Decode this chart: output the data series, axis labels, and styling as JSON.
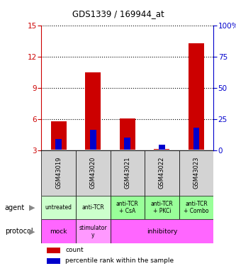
{
  "title": "GDS1339 / 169944_at",
  "samples": [
    "GSM43019",
    "GSM43020",
    "GSM43021",
    "GSM43022",
    "GSM43023"
  ],
  "count_values": [
    5.8,
    10.5,
    6.05,
    3.15,
    13.3
  ],
  "count_base": [
    3.05,
    3.05,
    3.05,
    3.05,
    3.05
  ],
  "percentile_values": [
    4.1,
    4.95,
    4.25,
    3.55,
    5.2
  ],
  "percentile_base": [
    3.05,
    3.05,
    3.05,
    3.05,
    3.05
  ],
  "ylim_left": [
    3,
    15
  ],
  "yticks_left": [
    3,
    6,
    9,
    12,
    15
  ],
  "ylim_right": [
    0,
    100
  ],
  "yticks_right": [
    0,
    25,
    50,
    75,
    100
  ],
  "agent_labels": [
    "untreated",
    "anti-TCR",
    "anti-TCR\n+ CsA",
    "anti-TCR\n+ PKCi",
    "anti-TCR\n+ Combo"
  ],
  "agent_colors": [
    "#ccffcc",
    "#ccffcc",
    "#99ff99",
    "#99ff99",
    "#99ff99"
  ],
  "bar_color_red": "#cc0000",
  "bar_color_blue": "#0000cc",
  "sample_bg_color": "#d3d3d3",
  "left_axis_color": "#cc0000",
  "right_axis_color": "#0000cc",
  "proto_mock_color": "#ff66ff",
  "proto_stim_color": "#ff99ff",
  "proto_inhib_color": "#ff66ff"
}
